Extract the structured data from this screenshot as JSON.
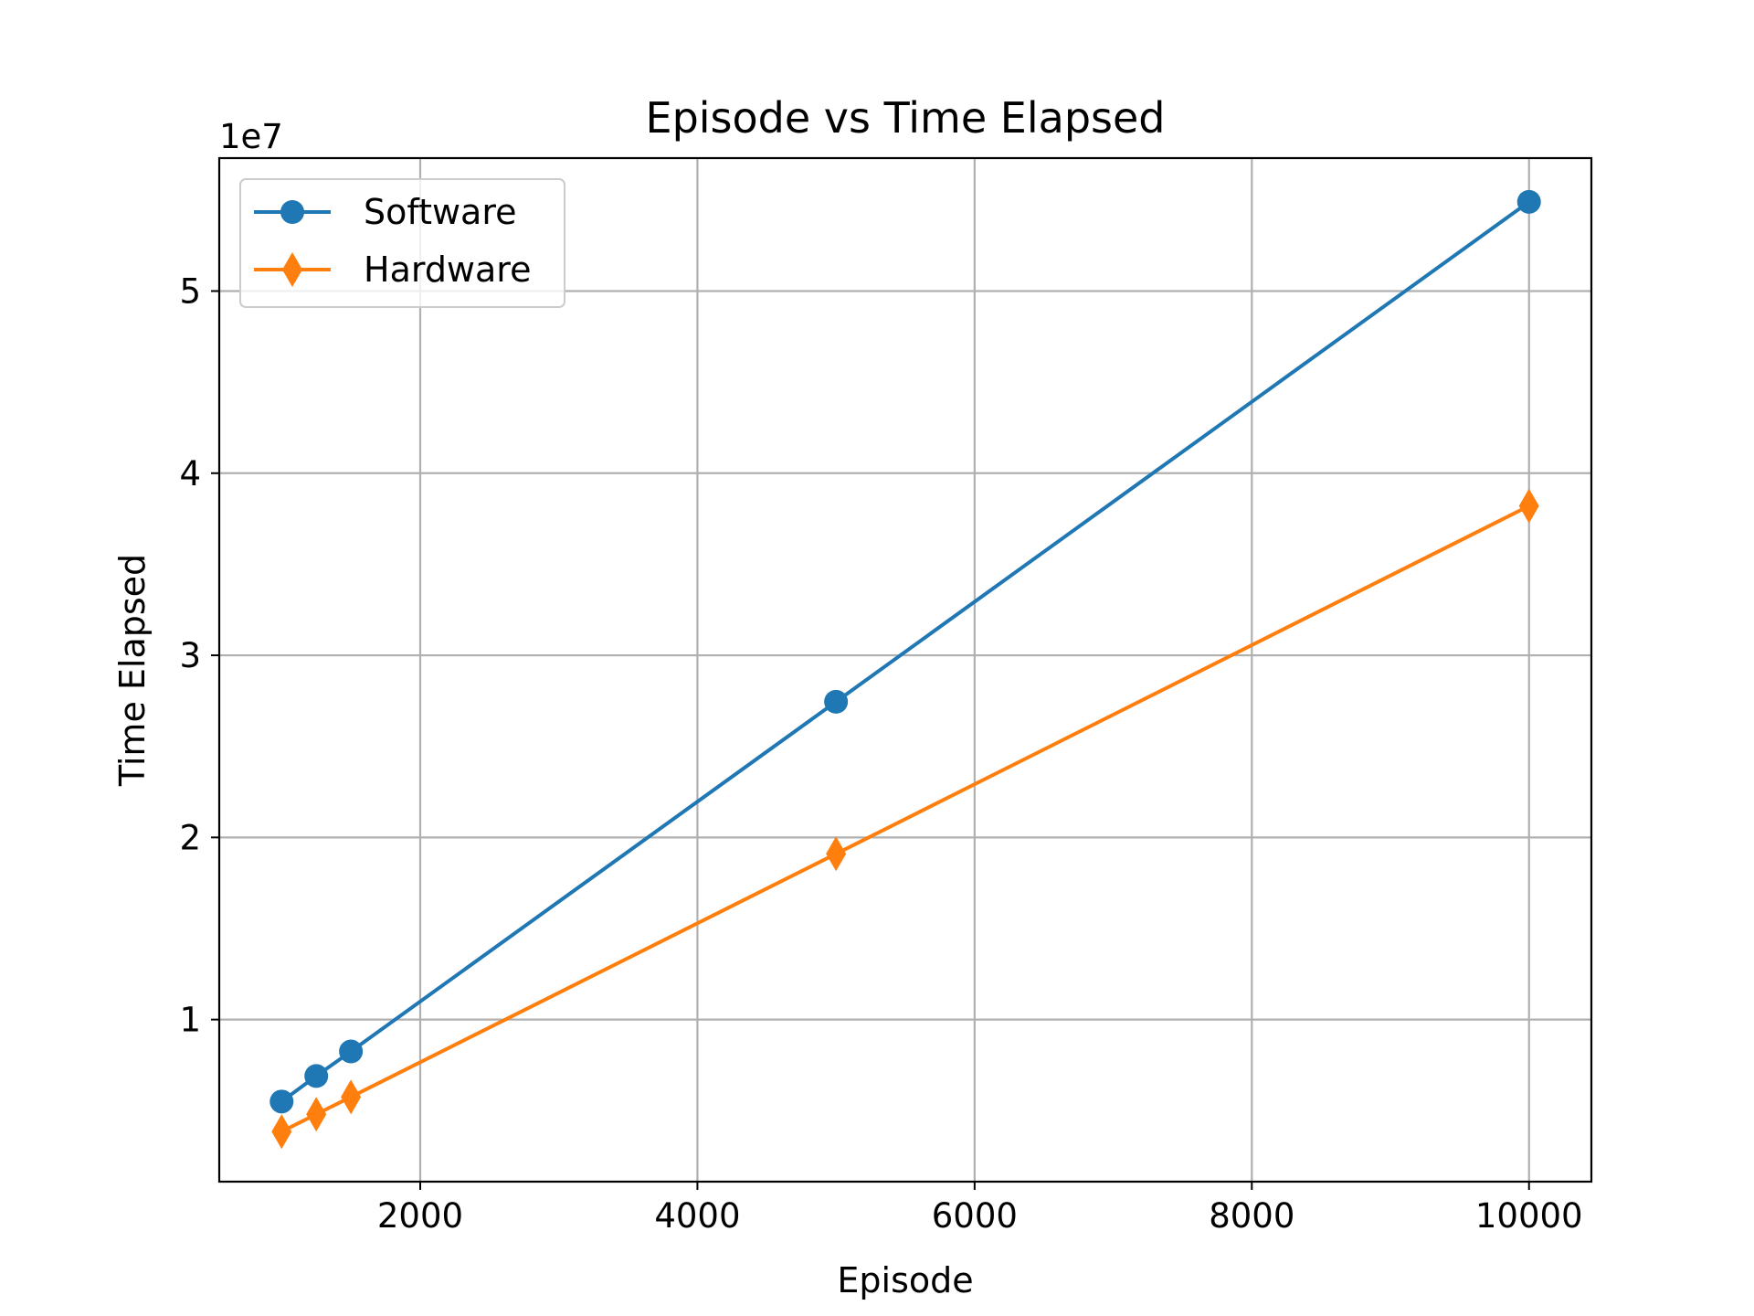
{
  "chart_data": {
    "type": "line",
    "title": "Episode vs Time Elapsed",
    "xlabel": "Episode",
    "ylabel": "Time Elapsed",
    "y_offset_label": "1e7",
    "y_scale_factor": 10000000,
    "xlim": [
      550,
      10450
    ],
    "ylim": [
      1100000,
      57300000
    ],
    "x_ticks": [
      2000,
      4000,
      6000,
      8000,
      10000
    ],
    "x_tick_labels": [
      "2000",
      "4000",
      "6000",
      "8000",
      "10000"
    ],
    "y_ticks": [
      10000000,
      20000000,
      30000000,
      40000000,
      50000000
    ],
    "y_tick_labels": [
      "1",
      "2",
      "3",
      "4",
      "5"
    ],
    "grid": true,
    "legend_position": "upper-left",
    "series": [
      {
        "name": "Software",
        "color": "#1f77b4",
        "marker": "circle",
        "x": [
          1000,
          1250,
          1500,
          5000,
          10000
        ],
        "y": [
          5500000,
          6900000,
          8250000,
          27450000,
          54900000
        ]
      },
      {
        "name": "Hardware",
        "color": "#ff7f0e",
        "marker": "diamond",
        "x": [
          1000,
          1250,
          1500,
          5000,
          10000
        ],
        "y": [
          3850000,
          4800000,
          5750000,
          19100000,
          38200000
        ]
      }
    ]
  }
}
